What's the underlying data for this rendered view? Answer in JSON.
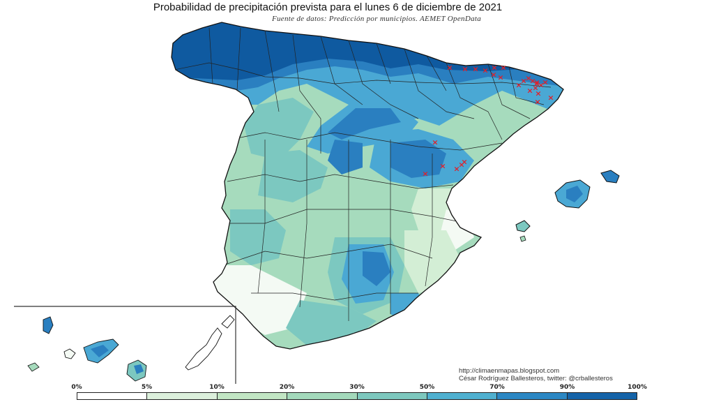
{
  "title": "Probabilidad de precipitación prevista para el lunes 6 de diciembre de 2021",
  "subtitle": "Fuente de datos: Predicción por municipios. AEMET OpenData",
  "credits": {
    "blog": "http://climaenmapas.blogspot.com",
    "author": "César Rodríguez Ballesteros, twitter: @crballesteros"
  },
  "legend": {
    "labels": [
      "0%",
      "5%",
      "10%",
      "20%",
      "30%",
      "50%",
      "70%",
      "90%",
      "100%"
    ],
    "colors": [
      "#ffffff",
      "#dcf0dc",
      "#c2e6c4",
      "#a3d9bb",
      "#7dc8be",
      "#4fb0d0",
      "#2b87c4",
      "#1463a8"
    ]
  },
  "map": {
    "marker_symbol": "×",
    "marker_color": "#e0202a",
    "colors": {
      "very_high": "#0f5aa0",
      "high": "#2a7fc0",
      "medium_high": "#4aa8d4",
      "medium": "#7cc8c0",
      "low": "#a6dbbd",
      "very_low": "#d3eed5",
      "none": "#f4faf4",
      "border": "#111111"
    }
  }
}
